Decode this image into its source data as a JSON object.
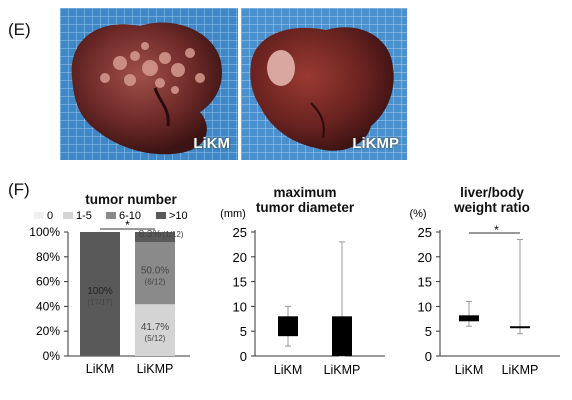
{
  "panel_e": {
    "label": "(E)",
    "photos": [
      {
        "caption": "LiKM"
      },
      {
        "caption": "LiKMP"
      }
    ]
  },
  "panel_f": {
    "label": "(F)"
  },
  "chart_data": [
    {
      "type": "bar",
      "stacked": true,
      "title": "tumor number",
      "legend": {
        "placement": "top",
        "entries": [
          {
            "name": "0",
            "color": "#f0f0f0"
          },
          {
            "name": "1-5",
            "color": "#d4d4d4"
          },
          {
            "name": "6-10",
            "color": "#8a8a8a"
          },
          {
            "name": ">10",
            "color": "#595959"
          }
        ]
      },
      "categories": [
        "LiKM",
        "LiKMP"
      ],
      "series": [
        {
          "name": "0",
          "values": [
            0,
            0
          ]
        },
        {
          "name": "1-5",
          "values": [
            0,
            41.7
          ]
        },
        {
          "name": "6-10",
          "values": [
            0,
            50.0
          ]
        },
        {
          "name": ">10",
          "values": [
            100,
            8.3
          ]
        }
      ],
      "yticks": [
        "0%",
        "20%",
        "40%",
        "60%",
        "80%",
        "100%"
      ],
      "ylim": [
        0,
        100
      ],
      "segment_labels": [
        {
          "category": "LiKM",
          "pct": "100%",
          "count": "(17/17)"
        },
        {
          "category": "LiKMP",
          "pct": "41.7%",
          "count": "(5/12)"
        },
        {
          "category": "LiKMP",
          "pct": "50.0%",
          "count": "(6/12)"
        },
        {
          "category": "LiKMP",
          "pct": "8.3%",
          "count": "(1/12)"
        }
      ],
      "significance": "*"
    },
    {
      "type": "bar",
      "title_lines": [
        "maximum",
        "tumor diameter"
      ],
      "unit": "(mm)",
      "categories": [
        "LiKM",
        "LiKMP"
      ],
      "boxes": [
        {
          "low": 4,
          "high": 8,
          "min": 2,
          "max": 10
        },
        {
          "low": 0,
          "high": 8,
          "min": 0,
          "max": 23
        }
      ],
      "yticks": [
        "0",
        "5",
        "10",
        "15",
        "20",
        "25"
      ],
      "ylim": [
        0,
        25
      ]
    },
    {
      "type": "bar",
      "title_lines": [
        "liver/body",
        "weight ratio"
      ],
      "unit": "(%)",
      "categories": [
        "LiKM",
        "LiKMP"
      ],
      "boxes": [
        {
          "low": 7,
          "high": 8.2,
          "min": 6,
          "max": 11
        },
        {
          "low": 5.6,
          "high": 6.0,
          "min": 4.5,
          "max": 23.5
        }
      ],
      "yticks": [
        "0",
        "5",
        "10",
        "15",
        "20",
        "25"
      ],
      "ylim": [
        0,
        25
      ],
      "significance": "*"
    }
  ]
}
